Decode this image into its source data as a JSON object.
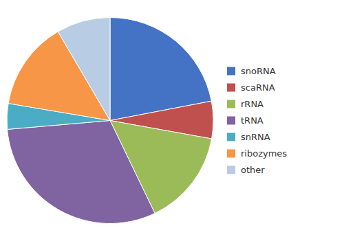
{
  "chart_data": {
    "type": "pie",
    "categories": [
      "snoRNA",
      "scaRNA",
      "rRNA",
      "tRNA",
      "snRNA",
      "ribozymes",
      "other"
    ],
    "values": [
      60,
      16,
      41,
      84,
      11,
      38,
      23
    ],
    "colors": [
      "#4472c4",
      "#c0504d",
      "#9bbb59",
      "#8064a2",
      "#4bacc6",
      "#f79646",
      "#b8cce4"
    ],
    "legend": "right"
  }
}
